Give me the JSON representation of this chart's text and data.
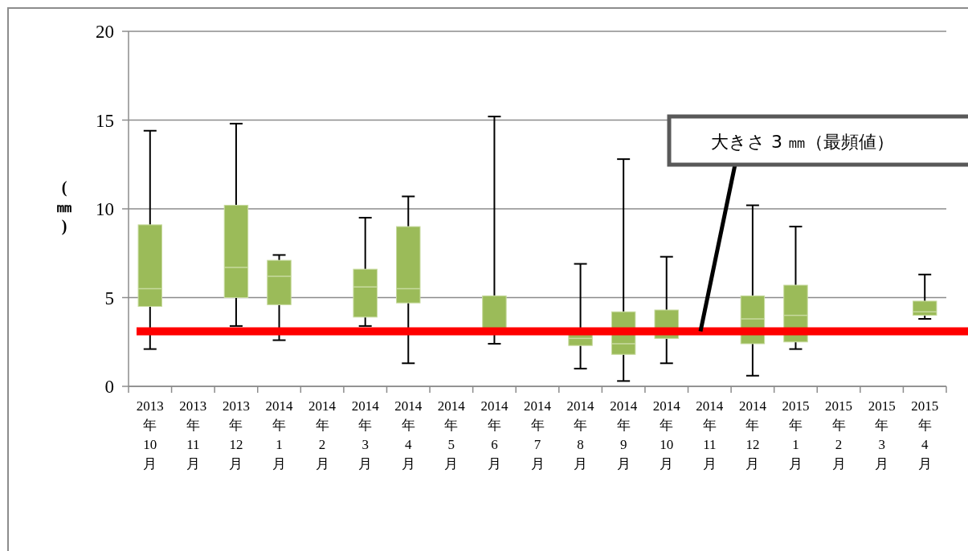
{
  "chart_data": {
    "type": "box",
    "ylabel": "(㎜)",
    "categories": [
      "2013年10月",
      "2013年11月",
      "2013年12月",
      "2014年1月",
      "2014年2月",
      "2014年3月",
      "2014年4月",
      "2014年5月",
      "2014年6月",
      "2014年7月",
      "2014年8月",
      "2014年9月",
      "2014年10月",
      "2014年11月",
      "2014年12月",
      "2015年1月",
      "2015年2月",
      "2015年3月",
      "2015年4月"
    ],
    "series": [
      {
        "color": "#9bbb59",
        "boxes": [
          {
            "low": 2.1,
            "q1": 4.5,
            "median": 5.5,
            "q3": 9.1,
            "high": 14.4
          },
          null,
          {
            "low": 3.4,
            "q1": 5.0,
            "median": 6.7,
            "q3": 10.2,
            "high": 14.8
          },
          {
            "low": 2.6,
            "q1": 4.6,
            "median": 6.2,
            "q3": 7.1,
            "high": 7.4
          },
          null,
          {
            "low": 3.4,
            "q1": 3.9,
            "median": 5.6,
            "q3": 6.6,
            "high": 9.5
          },
          {
            "low": 1.3,
            "q1": 4.7,
            "median": 5.5,
            "q3": 9.0,
            "high": 10.7
          },
          null,
          {
            "low": 2.4,
            "q1": 3.2,
            "median": 3.2,
            "q3": 5.1,
            "high": 15.2
          },
          null,
          {
            "low": 1.0,
            "q1": 2.3,
            "median": 2.7,
            "q3": 3.2,
            "high": 6.9
          },
          {
            "low": 0.3,
            "q1": 1.8,
            "median": 2.4,
            "q3": 4.2,
            "high": 12.8
          },
          {
            "low": 1.3,
            "q1": 2.7,
            "median": 3.2,
            "q3": 4.3,
            "high": 7.3
          },
          null,
          {
            "low": 0.6,
            "q1": 2.4,
            "median": 3.8,
            "q3": 5.1,
            "high": 10.2
          },
          {
            "low": 2.1,
            "q1": 2.5,
            "median": 4.0,
            "q3": 5.7,
            "high": 9.0
          },
          null,
          null,
          {
            "low": 3.8,
            "q1": 4.0,
            "median": 4.2,
            "q3": 4.8,
            "high": 6.3
          }
        ]
      }
    ],
    "ylim": [
      0,
      20
    ],
    "yticks": [
      0,
      5,
      10,
      15,
      20
    ],
    "grid": "y",
    "ref_lines": [
      {
        "axis": "y",
        "value": 3.1,
        "label": "大きさ 3 ㎜（最頻値）",
        "color": "#ff0000"
      }
    ]
  }
}
